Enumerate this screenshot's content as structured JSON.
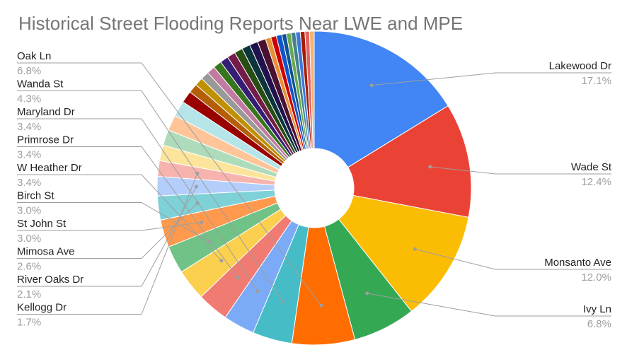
{
  "chart_data": {
    "type": "pie",
    "title": "Historical Street Flooding Reports Near LWE and MPE",
    "donut": true,
    "slices": [
      {
        "label": "Lakewood Dr",
        "value": 17.1,
        "color": "#4285f4",
        "labeled": true
      },
      {
        "label": "Wade St",
        "value": 12.4,
        "color": "#ea4335",
        "labeled": true
      },
      {
        "label": "Monsanto Ave",
        "value": 12.0,
        "color": "#fbbc04",
        "labeled": true
      },
      {
        "label": "Ivy Ln",
        "value": 6.8,
        "color": "#34a853",
        "labeled": true
      },
      {
        "label": "Oak Ln",
        "value": 6.8,
        "color": "#ff6d01",
        "labeled": true
      },
      {
        "label": "Wanda St",
        "value": 4.3,
        "color": "#46bdc6",
        "labeled": true
      },
      {
        "label": "Maryland Dr",
        "value": 3.4,
        "color": "#7baaf7",
        "labeled": true
      },
      {
        "label": "Primrose Dr",
        "value": 3.4,
        "color": "#f07b72",
        "labeled": true
      },
      {
        "label": "W Heather Dr",
        "value": 3.4,
        "color": "#fcd04f",
        "labeled": true
      },
      {
        "label": "Birch St",
        "value": 3.0,
        "color": "#71c287",
        "labeled": true
      },
      {
        "label": "St John St",
        "value": 3.0,
        "color": "#ff994d",
        "labeled": true
      },
      {
        "label": "Mimosa Ave",
        "value": 2.6,
        "color": "#7ed1d7",
        "labeled": true
      },
      {
        "label": "River Oaks Dr",
        "value": 2.1,
        "color": "#b3cefb",
        "labeled": true
      },
      {
        "label": "Kellogg Dr",
        "value": 1.7,
        "color": "#f7b4ae",
        "labeled": true
      },
      {
        "label": "",
        "value": 1.7,
        "color": "#fde49b",
        "labeled": false
      },
      {
        "label": "",
        "value": 1.7,
        "color": "#aedcba",
        "labeled": false
      },
      {
        "label": "",
        "value": 1.7,
        "color": "#ffc599",
        "labeled": false
      },
      {
        "label": "",
        "value": 1.7,
        "color": "#b5e5e8",
        "labeled": false
      },
      {
        "label": "",
        "value": 1.3,
        "color": "#990000",
        "labeled": false
      },
      {
        "label": "",
        "value": 1.0,
        "color": "#b45f06",
        "labeled": false
      },
      {
        "label": "",
        "value": 0.9,
        "color": "#bf9000",
        "labeled": false
      },
      {
        "label": "",
        "value": 0.9,
        "color": "#999999",
        "labeled": false
      },
      {
        "label": "",
        "value": 0.9,
        "color": "#c27ba0",
        "labeled": false
      },
      {
        "label": "",
        "value": 0.9,
        "color": "#38761d",
        "labeled": false
      },
      {
        "label": "",
        "value": 0.9,
        "color": "#351c75",
        "labeled": false
      },
      {
        "label": "",
        "value": 0.9,
        "color": "#741b47",
        "labeled": false
      },
      {
        "label": "",
        "value": 0.9,
        "color": "#274e13",
        "labeled": false
      },
      {
        "label": "",
        "value": 0.9,
        "color": "#0c343d",
        "labeled": false
      },
      {
        "label": "",
        "value": 0.9,
        "color": "#20124d",
        "labeled": false
      },
      {
        "label": "",
        "value": 0.9,
        "color": "#4c1130",
        "labeled": false
      },
      {
        "label": "",
        "value": 0.6,
        "color": "#e69138",
        "labeled": false
      },
      {
        "label": "",
        "value": 0.6,
        "color": "#cc0000",
        "labeled": false
      },
      {
        "label": "",
        "value": 0.6,
        "color": "#1155cc",
        "labeled": false
      },
      {
        "label": "",
        "value": 0.5,
        "color": "#0b5394",
        "labeled": false
      },
      {
        "label": "",
        "value": 0.5,
        "color": "#6aa84f",
        "labeled": false
      },
      {
        "label": "",
        "value": 0.5,
        "color": "#45818e",
        "labeled": false
      },
      {
        "label": "",
        "value": 0.5,
        "color": "#3c78d8",
        "labeled": false
      },
      {
        "label": "",
        "value": 0.5,
        "color": "#a61c00",
        "labeled": false
      },
      {
        "label": "",
        "value": 0.5,
        "color": "#e06666",
        "labeled": false
      },
      {
        "label": "",
        "value": 0.5,
        "color": "#f6b26b",
        "labeled": false
      }
    ],
    "display_percentages": [
      "17.1%",
      "12.4%",
      "12.0%",
      "6.8%",
      "6.8%",
      "4.3%",
      "3.4%",
      "3.4%",
      "3.4%",
      "3.0%",
      "3.0%",
      "2.6%",
      "2.1%",
      "1.7%"
    ],
    "legend": "none"
  }
}
